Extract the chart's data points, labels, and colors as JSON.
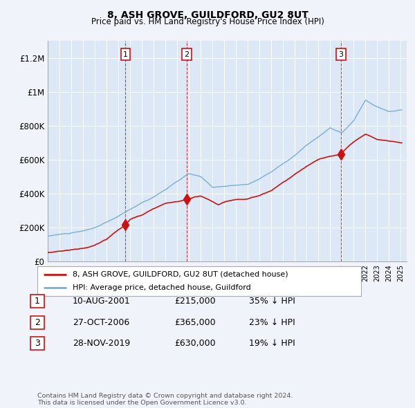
{
  "title": "8, ASH GROVE, GUILDFORD, GU2 8UT",
  "subtitle": "Price paid vs. HM Land Registry's House Price Index (HPI)",
  "ylim": [
    0,
    1300000
  ],
  "yticks": [
    0,
    200000,
    400000,
    600000,
    800000,
    1000000,
    1200000
  ],
  "ytick_labels": [
    "£0",
    "£200K",
    "£400K",
    "£600K",
    "£800K",
    "£1M",
    "£1.2M"
  ],
  "hpi_color": "#7aadd4",
  "price_color": "#cc1111",
  "shade_color": "#dce8f5",
  "legend_label_price": "8, ASH GROVE, GUILDFORD, GU2 8UT (detached house)",
  "legend_label_hpi": "HPI: Average price, detached house, Guildford",
  "transactions": [
    {
      "num": 1,
      "date": "10-AUG-2001",
      "price": 215000,
      "hpi_diff": "35% ↓ HPI",
      "x": 2001.61
    },
    {
      "num": 2,
      "date": "27-OCT-2006",
      "price": 365000,
      "hpi_diff": "23% ↓ HPI",
      "x": 2006.82
    },
    {
      "num": 3,
      "date": "28-NOV-2019",
      "price": 630000,
      "hpi_diff": "19% ↓ HPI",
      "x": 2019.91
    }
  ],
  "footer": "Contains HM Land Registry data © Crown copyright and database right 2024.\nThis data is licensed under the Open Government Licence v3.0.",
  "background_color": "#f0f4fa",
  "plot_bg_color": "#dce8f5",
  "grid_color": "#ffffff"
}
